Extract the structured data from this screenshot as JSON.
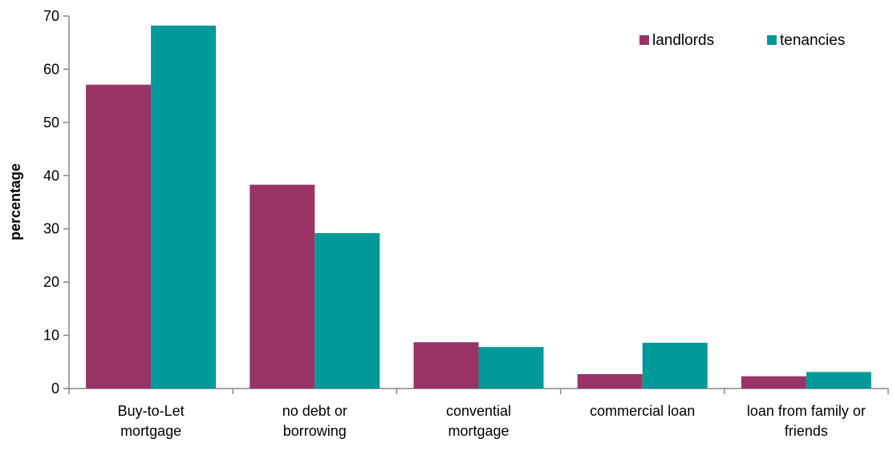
{
  "chart_data": {
    "type": "bar",
    "title": "",
    "xlabel": "",
    "ylabel": "percentage",
    "ylim": [
      0,
      70
    ],
    "yticks": [
      0,
      10,
      20,
      30,
      40,
      50,
      60,
      70
    ],
    "grid": false,
    "legend_position": "top-right",
    "categories": [
      [
        "Buy-to-Let",
        "mortgage"
      ],
      [
        "no debt or",
        "borrowing"
      ],
      [
        "convential",
        "mortgage"
      ],
      [
        "commercial loan"
      ],
      [
        "loan from family or",
        "friends"
      ]
    ],
    "series": [
      {
        "name": "landlords",
        "color": "#993366",
        "values": [
          57.1,
          38.3,
          8.7,
          2.7,
          2.3
        ]
      },
      {
        "name": "tenancies",
        "color": "#009999",
        "values": [
          68.2,
          29.2,
          7.8,
          8.6,
          3.1
        ]
      }
    ]
  }
}
